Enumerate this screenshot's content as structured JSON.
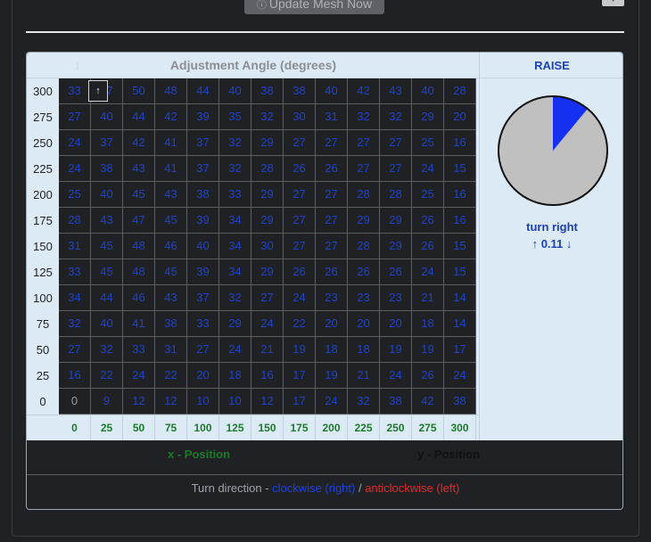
{
  "toolbar": {
    "update_label": "Update Mesh Now",
    "update_icon": "info-circle-icon",
    "corner_icon": "caret-icon"
  },
  "panel": {
    "angle_title": "Adjustment Angle (degrees)",
    "raise_title": "RAISE",
    "turn_label": "turn right",
    "turn_value": "↑ 0.11 ↓",
    "pie_fraction": 0.11,
    "pie_colors": {
      "fill": "#1530f0",
      "rest": "#c0c0c0"
    }
  },
  "grid": {
    "y_labels": [
      "300",
      "275",
      "250",
      "225",
      "200",
      "175",
      "150",
      "125",
      "100",
      "75",
      "50",
      "25",
      "0"
    ],
    "x_labels": [
      "0",
      "25",
      "50",
      "75",
      "100",
      "125",
      "150",
      "175",
      "200",
      "225",
      "250",
      "275",
      "300"
    ],
    "rows": [
      [
        "33",
        "47",
        "50",
        "48",
        "44",
        "40",
        "38",
        "38",
        "40",
        "42",
        "43",
        "40",
        "28"
      ],
      [
        "27",
        "40",
        "44",
        "42",
        "39",
        "35",
        "32",
        "30",
        "31",
        "32",
        "32",
        "29",
        "20"
      ],
      [
        "24",
        "37",
        "42",
        "41",
        "37",
        "32",
        "29",
        "27",
        "27",
        "27",
        "27",
        "25",
        "16"
      ],
      [
        "24",
        "38",
        "43",
        "41",
        "37",
        "32",
        "28",
        "26",
        "26",
        "27",
        "27",
        "24",
        "15"
      ],
      [
        "25",
        "40",
        "45",
        "43",
        "38",
        "33",
        "29",
        "27",
        "27",
        "28",
        "28",
        "25",
        "16"
      ],
      [
        "28",
        "43",
        "47",
        "45",
        "39",
        "34",
        "29",
        "27",
        "27",
        "29",
        "29",
        "26",
        "16"
      ],
      [
        "31",
        "45",
        "48",
        "46",
        "40",
        "34",
        "30",
        "27",
        "27",
        "28",
        "29",
        "26",
        "15"
      ],
      [
        "33",
        "45",
        "48",
        "45",
        "39",
        "34",
        "29",
        "26",
        "26",
        "26",
        "26",
        "24",
        "15"
      ],
      [
        "34",
        "44",
        "46",
        "43",
        "37",
        "32",
        "27",
        "24",
        "23",
        "23",
        "23",
        "21",
        "14"
      ],
      [
        "32",
        "40",
        "41",
        "38",
        "33",
        "29",
        "24",
        "22",
        "20",
        "20",
        "20",
        "18",
        "14"
      ],
      [
        "27",
        "32",
        "33",
        "31",
        "27",
        "24",
        "21",
        "19",
        "18",
        "18",
        "19",
        "19",
        "17"
      ],
      [
        "16",
        "22",
        "24",
        "22",
        "20",
        "18",
        "16",
        "17",
        "19",
        "21",
        "24",
        "26",
        "24"
      ],
      [
        "0",
        "9",
        "12",
        "12",
        "10",
        "10",
        "12",
        "17",
        "24",
        "32",
        "38",
        "42",
        "38"
      ]
    ],
    "tooltip_text": "↑"
  },
  "axes": {
    "x_title": "x - Position",
    "y_title": "y - Position"
  },
  "legend": {
    "prefix": "Turn direction - ",
    "clockwise": "clockwise (right)",
    "separator": " / ",
    "anticlockwise": "anticlockwise (left)"
  }
}
